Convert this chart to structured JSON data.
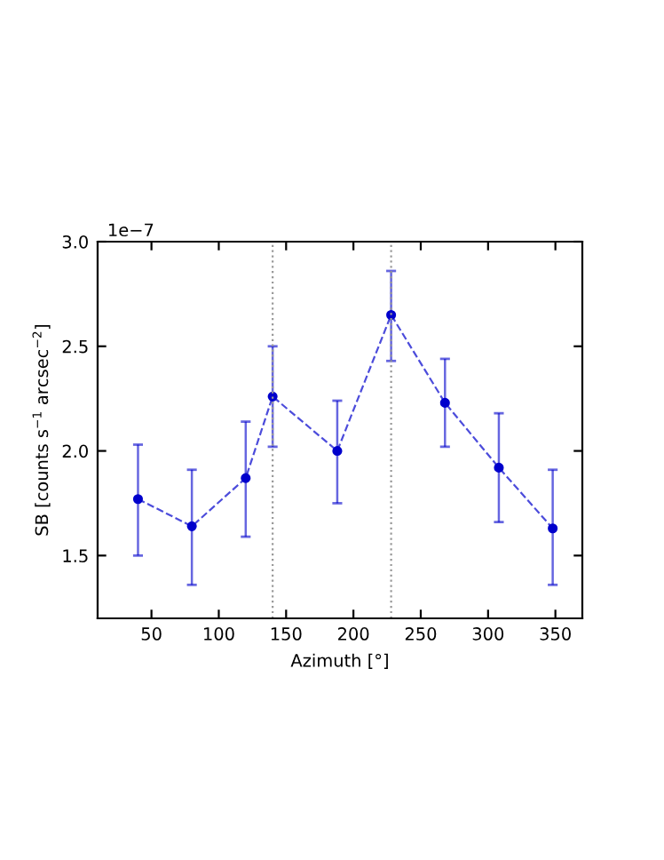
{
  "chart_data": {
    "type": "line",
    "xlabel": "Azimuth [°]",
    "ylabel": "SB [counts s$^{−1}$ arcsec$^{−2}$]",
    "annotations": [
      "1e−7"
    ],
    "x": [
      40,
      80,
      120,
      140,
      188,
      228,
      268,
      308,
      348
    ],
    "series": [
      {
        "color": "#0000cc",
        "values": [
          1.77,
          1.64,
          1.87,
          2.26,
          2.0,
          2.65,
          2.23,
          1.92,
          1.63
        ],
        "errors": [
          [
            1.5,
            2.03
          ],
          [
            1.36,
            1.91
          ],
          [
            1.59,
            2.14
          ],
          [
            2.02,
            2.5
          ],
          [
            1.75,
            2.24
          ],
          [
            2.43,
            2.86
          ],
          [
            2.02,
            2.44
          ],
          [
            1.66,
            2.18
          ],
          [
            1.36,
            1.91
          ]
        ]
      }
    ],
    "marker": "circle",
    "line_style": "dashed",
    "xlim": [
      10,
      370
    ],
    "xticks": [
      50,
      100,
      150,
      200,
      250,
      300,
      350
    ],
    "ylim": [
      1.2,
      3.0
    ],
    "yticks": [
      {
        "value": 1.5,
        "label": "1.5"
      },
      {
        "value": 2.0,
        "label": "2.0"
      },
      {
        "value": 2.5,
        "label": "2.5"
      },
      {
        "value": 3.0,
        "label": "3.0"
      }
    ],
    "ref_lines": [
      {
        "axis": "x",
        "value": 140,
        "line_style": "dotted",
        "color": "#999999"
      },
      {
        "axis": "x",
        "value": 228,
        "line_style": "dotted",
        "color": "#999999"
      }
    ]
  }
}
